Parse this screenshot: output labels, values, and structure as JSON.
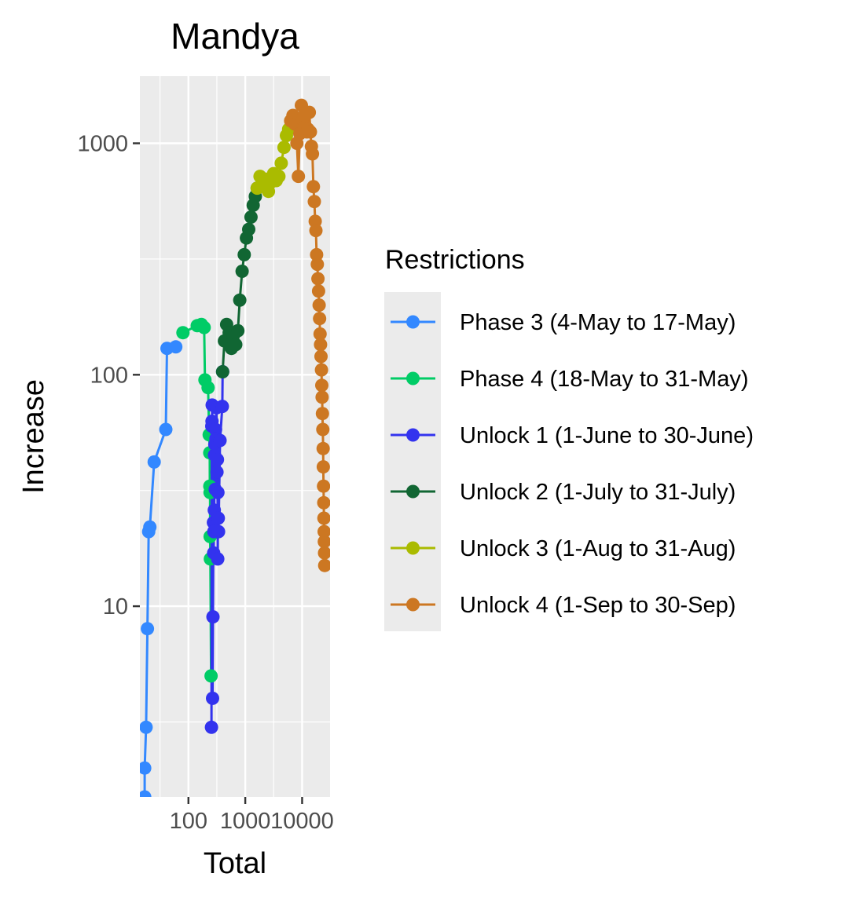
{
  "chart_data": {
    "type": "line",
    "title": "Mandya",
    "xlabel": "Total",
    "ylabel": "Increase",
    "x_scale": "log10",
    "y_scale": "log10",
    "xlim": [
      14,
      31000
    ],
    "ylim": [
      1.5,
      1950
    ],
    "x_ticks": [
      100,
      1000,
      10000
    ],
    "x_tick_labels": [
      "100",
      "1000",
      "10000"
    ],
    "y_ticks": [
      10,
      100,
      1000
    ],
    "y_tick_labels": [
      "10",
      "100",
      "1000"
    ],
    "grid": true,
    "legend": {
      "title": "Restrictions",
      "position": "right"
    },
    "series": [
      {
        "name": "Phase 3 (4-May to 17-May)",
        "color": "#3388FF",
        "points": [
          [
            17,
            1.5
          ],
          [
            17,
            2
          ],
          [
            18,
            3
          ],
          [
            19,
            8
          ],
          [
            20,
            21
          ],
          [
            21,
            22
          ],
          [
            25,
            42
          ],
          [
            40,
            58
          ],
          [
            42,
            130
          ],
          [
            60,
            132
          ]
        ]
      },
      {
        "name": "Phase 4 (18-May to 31-May)",
        "color": "#00CC66",
        "points": [
          [
            80,
            152
          ],
          [
            143,
            163
          ],
          [
            169,
            165
          ],
          [
            189,
            160
          ],
          [
            195,
            95
          ],
          [
            222,
            88
          ],
          [
            232,
            55
          ],
          [
            237,
            46
          ],
          [
            238,
            33
          ],
          [
            240,
            31
          ],
          [
            241,
            20
          ],
          [
            243,
            16
          ],
          [
            250,
            5
          ]
        ]
      },
      {
        "name": "Unlock 1 (1-June to 30-June)",
        "color": "#3333EE",
        "points": [
          [
            254,
            3
          ],
          [
            258,
            60
          ],
          [
            260,
            63
          ],
          [
            262,
            74
          ],
          [
            266,
            4
          ],
          [
            270,
            9
          ],
          [
            275,
            23
          ],
          [
            278,
            17
          ],
          [
            280,
            21
          ],
          [
            285,
            26
          ],
          [
            288,
            45
          ],
          [
            292,
            50
          ],
          [
            296,
            32
          ],
          [
            300,
            58
          ],
          [
            305,
            53
          ],
          [
            312,
            72
          ],
          [
            318,
            38
          ],
          [
            324,
            43
          ],
          [
            328,
            16
          ],
          [
            330,
            31
          ],
          [
            335,
            24
          ],
          [
            339,
            21
          ],
          [
            360,
            52
          ],
          [
            395,
            73
          ],
          [
            400,
            103
          ]
        ]
      },
      {
        "name": "Unlock 2 (1-July to 31-July)",
        "color": "#116633",
        "points": [
          [
            400,
            103
          ],
          [
            430,
            140
          ],
          [
            470,
            165
          ],
          [
            520,
            152
          ],
          [
            570,
            130
          ],
          [
            620,
            148
          ],
          [
            680,
            135
          ],
          [
            740,
            155
          ],
          [
            800,
            210
          ],
          [
            880,
            280
          ],
          [
            960,
            330
          ],
          [
            1050,
            390
          ],
          [
            1150,
            425
          ],
          [
            1260,
            480
          ],
          [
            1380,
            540
          ],
          [
            1500,
            590
          ],
          [
            1620,
            640
          ]
        ]
      },
      {
        "name": "Unlock 3 (1-Aug to 31-Aug)",
        "color": "#AABB00",
        "points": [
          [
            1620,
            640
          ],
          [
            1820,
            720
          ],
          [
            2050,
            660
          ],
          [
            2300,
            700
          ],
          [
            2560,
            620
          ],
          [
            2850,
            680
          ],
          [
            3150,
            740
          ],
          [
            3500,
            690
          ],
          [
            3900,
            720
          ],
          [
            4300,
            820
          ],
          [
            4800,
            960
          ],
          [
            5300,
            1080
          ],
          [
            5800,
            1150
          ],
          [
            6300,
            1250
          ]
        ]
      },
      {
        "name": "Unlock 4 (1-Sep to 30-Sep)",
        "color": "#CC7722",
        "points": [
          [
            6300,
            1250
          ],
          [
            6900,
            1320
          ],
          [
            7500,
            1210
          ],
          [
            8100,
            1000
          ],
          [
            8600,
            720
          ],
          [
            9100,
            1100
          ],
          [
            9700,
            1460
          ],
          [
            10300,
            1260
          ],
          [
            10900,
            1320
          ],
          [
            11500,
            1180
          ],
          [
            12100,
            1120
          ],
          [
            12700,
            1150
          ],
          [
            13400,
            1360
          ],
          [
            14000,
            1120
          ],
          [
            14600,
            970
          ],
          [
            15200,
            900
          ],
          [
            15800,
            650
          ],
          [
            16400,
            560
          ],
          [
            17000,
            460
          ],
          [
            17500,
            420
          ],
          [
            18000,
            330
          ],
          [
            18500,
            300
          ],
          [
            19000,
            260
          ],
          [
            19500,
            230
          ],
          [
            19900,
            200
          ],
          [
            20300,
            175
          ],
          [
            20700,
            150
          ],
          [
            21100,
            135
          ],
          [
            21500,
            120
          ],
          [
            21900,
            105
          ],
          [
            22200,
            90
          ],
          [
            22500,
            80
          ],
          [
            22800,
            68
          ],
          [
            23100,
            58
          ],
          [
            23400,
            48
          ],
          [
            23600,
            40
          ],
          [
            23800,
            33
          ],
          [
            24000,
            28
          ],
          [
            24200,
            24
          ],
          [
            24400,
            21
          ],
          [
            24600,
            19
          ],
          [
            24800,
            17
          ],
          [
            25000,
            15
          ]
        ]
      }
    ]
  }
}
